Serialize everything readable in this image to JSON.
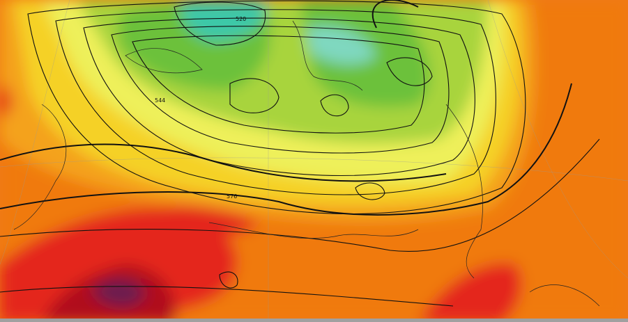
{
  "contour_labels": [
    "544",
    "576",
    "520"
  ]
}
